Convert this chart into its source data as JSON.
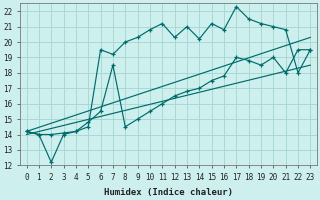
{
  "xlabel": "Humidex (Indice chaleur)",
  "bg_color": "#cdf0ee",
  "grid_color": "#a8d8d5",
  "line_color": "#006b6b",
  "xlim": [
    -0.5,
    23.5
  ],
  "ylim": [
    12,
    22.5
  ],
  "yticks": [
    12,
    13,
    14,
    15,
    16,
    17,
    18,
    19,
    20,
    21,
    22
  ],
  "xticks": [
    0,
    1,
    2,
    3,
    4,
    5,
    6,
    7,
    8,
    9,
    10,
    11,
    12,
    13,
    14,
    15,
    16,
    17,
    18,
    19,
    20,
    21,
    22,
    23
  ],
  "line1_x": [
    0,
    1,
    2,
    3,
    4,
    5,
    6,
    7,
    8,
    9,
    10,
    11,
    12,
    13,
    14,
    15,
    16,
    17,
    18,
    19,
    20,
    21,
    22,
    23
  ],
  "line1_y": [
    14.2,
    14.0,
    14.0,
    14.1,
    14.2,
    14.5,
    19.5,
    19.2,
    20.0,
    20.3,
    20.8,
    21.2,
    20.3,
    21.0,
    20.2,
    21.2,
    20.8,
    22.3,
    21.5,
    21.2,
    21.0,
    20.8,
    18.0,
    19.5
  ],
  "line2_x": [
    0,
    1,
    2,
    3,
    4,
    5,
    6,
    7,
    8,
    9,
    10,
    11,
    12,
    13,
    14,
    15,
    16,
    17,
    18,
    19,
    20,
    21,
    22,
    23
  ],
  "line2_y": [
    14.2,
    14.0,
    12.2,
    14.0,
    14.2,
    14.8,
    15.5,
    18.5,
    14.5,
    15.0,
    15.5,
    16.0,
    16.5,
    16.8,
    17.0,
    17.5,
    17.8,
    19.0,
    18.8,
    18.5,
    19.0,
    18.0,
    19.5,
    19.5
  ],
  "line3_x": [
    0,
    23
  ],
  "line3_y": [
    14.2,
    20.3
  ],
  "line4_x": [
    0,
    23
  ],
  "line4_y": [
    14.0,
    18.5
  ]
}
